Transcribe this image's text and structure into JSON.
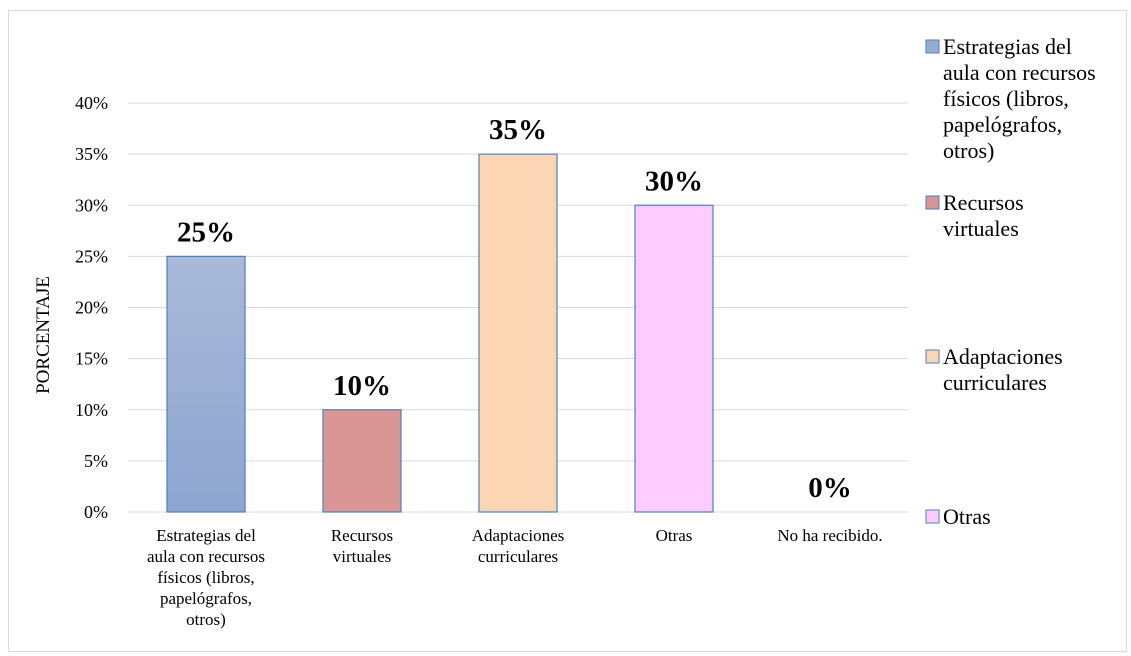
{
  "chart_data": {
    "type": "bar",
    "categories": [
      "Estrategias del aula con recursos físicos (libros, papelógrafos, otros)",
      "Recursos virtuales",
      "Adaptaciones curriculares",
      "Otras",
      "No ha recibido."
    ],
    "category_label_lines": [
      [
        "Estrategias del",
        "aula con recursos",
        "físicos (libros,",
        "papelógrafos,",
        "otros)"
      ],
      [
        "Recursos",
        "virtuales"
      ],
      [
        "Adaptaciones",
        "curriculares"
      ],
      [
        "Otras"
      ],
      [
        "No ha recibido."
      ]
    ],
    "values": [
      25,
      10,
      35,
      30,
      0
    ],
    "data_labels": [
      "25%",
      "10%",
      "35%",
      "30%",
      "0%"
    ],
    "ylabel": "PORCENTAJE",
    "ylim": [
      0,
      40
    ],
    "yticks": [
      "0%",
      "5%",
      "10%",
      "15%",
      "20%",
      "25%",
      "30%",
      "35%",
      "40%"
    ],
    "grid": true,
    "colors": {
      "bar_fill_top": [
        "#aab9d9",
        "#d99694",
        "#fcd5b4",
        "#ffccff",
        "#ffffff"
      ],
      "bar_fill_bottom": [
        "#8da5cf",
        "#d99694",
        "#fcd5b4",
        "#ffccff",
        "#ffffff"
      ],
      "bar_stroke": "#4f7ec0",
      "legend_fill": [
        "#95acd3",
        "#d99694",
        "#fcd5b4",
        "#ffccff"
      ],
      "gridline": "#d9d9d9"
    },
    "legend_position": "right",
    "legend": [
      {
        "lines": [
          "Estrategias del",
          "aula con recursos",
          "físicos (libros,",
          "papelógrafos,",
          "otros)"
        ]
      },
      {
        "lines": [
          "Recursos",
          "virtuales"
        ]
      },
      {
        "lines": [
          "Adaptaciones",
          "curriculares"
        ]
      },
      {
        "lines": [
          "Otras"
        ]
      }
    ]
  }
}
